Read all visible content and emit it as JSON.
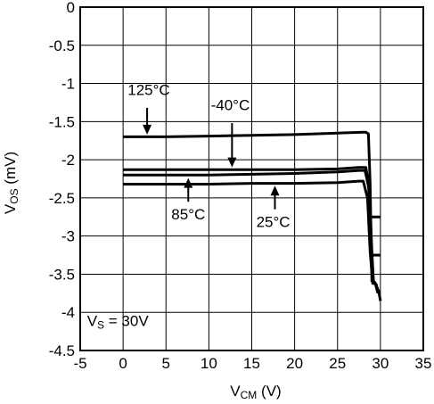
{
  "chart_data": {
    "type": "line",
    "xlabel": {
      "main": "V",
      "sub": "CM",
      "unit": " (V)"
    },
    "ylabel": {
      "main": "V",
      "sub": "OS",
      "unit": " (mV)"
    },
    "xlim": [
      -5,
      35
    ],
    "ylim": [
      -4.5,
      0
    ],
    "xticks": [
      -5,
      0,
      5,
      10,
      15,
      20,
      25,
      30,
      35
    ],
    "yticks": [
      0,
      -0.5,
      -1,
      -1.5,
      -2,
      -2.5,
      -3,
      -3.5,
      -4,
      -4.5
    ],
    "grid": true,
    "series": [
      {
        "name": "125°C",
        "x": [
          0,
          5,
          10,
          15,
          20,
          25,
          28,
          28.3,
          28.6,
          28.8,
          29.0
        ],
        "y": [
          -1.7,
          -1.7,
          -1.69,
          -1.68,
          -1.67,
          -1.65,
          -1.64,
          -1.64,
          -1.66,
          -2.3,
          -3.6
        ]
      },
      {
        "name": "-40°C",
        "x": [
          0,
          5,
          10,
          15,
          20,
          25,
          27.5,
          28.3,
          28.6,
          28.9,
          29.1,
          29.3,
          29.6
        ],
        "y": [
          -2.13,
          -2.13,
          -2.13,
          -2.13,
          -2.13,
          -2.12,
          -2.1,
          -2.1,
          -2.3,
          -3.0,
          -3.6,
          -3.6,
          -3.65
        ]
      },
      {
        "name": "85°C",
        "x": [
          0,
          5,
          10,
          15,
          20,
          25,
          27.5,
          28.2,
          28.7,
          29.0,
          29.2,
          29.4,
          29.7
        ],
        "y": [
          -2.2,
          -2.2,
          -2.2,
          -2.19,
          -2.18,
          -2.16,
          -2.14,
          -2.14,
          -2.4,
          -3.2,
          -3.62,
          -3.62,
          -3.75
        ]
      },
      {
        "name": "25°C",
        "x": [
          0,
          5,
          10,
          15,
          20,
          25,
          27.5,
          28.0,
          28.5,
          28.8,
          29.1,
          29.4,
          29.8,
          30.0
        ],
        "y": [
          -2.32,
          -2.32,
          -2.32,
          -2.31,
          -2.31,
          -2.3,
          -2.28,
          -2.28,
          -2.5,
          -3.2,
          -3.62,
          -3.62,
          -3.72,
          -3.85
        ]
      }
    ],
    "steps": [
      {
        "x": [
          29.0,
          30.0
        ],
        "y": -2.75
      },
      {
        "x": [
          29.0,
          30.0
        ],
        "y": -3.25
      }
    ],
    "annotations": [
      {
        "text": "125°C",
        "label_x": 3.0,
        "label_y": -1.15,
        "from": [
          2.8,
          -1.32
        ],
        "to": [
          2.8,
          -1.67
        ]
      },
      {
        "text": "-40°C",
        "label_x": 12.5,
        "label_y": -1.35,
        "from": [
          12.7,
          -1.52
        ],
        "to": [
          12.7,
          -2.1
        ]
      },
      {
        "text": "85°C",
        "label_x": 7.6,
        "label_y": -2.78,
        "from": [
          7.6,
          -2.55
        ],
        "to": [
          7.6,
          -2.24
        ]
      },
      {
        "text": "25°C",
        "label_x": 17.5,
        "label_y": -2.88,
        "from": [
          17.7,
          -2.65
        ],
        "to": [
          17.7,
          -2.34
        ]
      },
      {
        "text": "V",
        "sub": "S",
        "tail": " = 30V",
        "label_x": -4.2,
        "label_y": -4.18
      }
    ]
  }
}
